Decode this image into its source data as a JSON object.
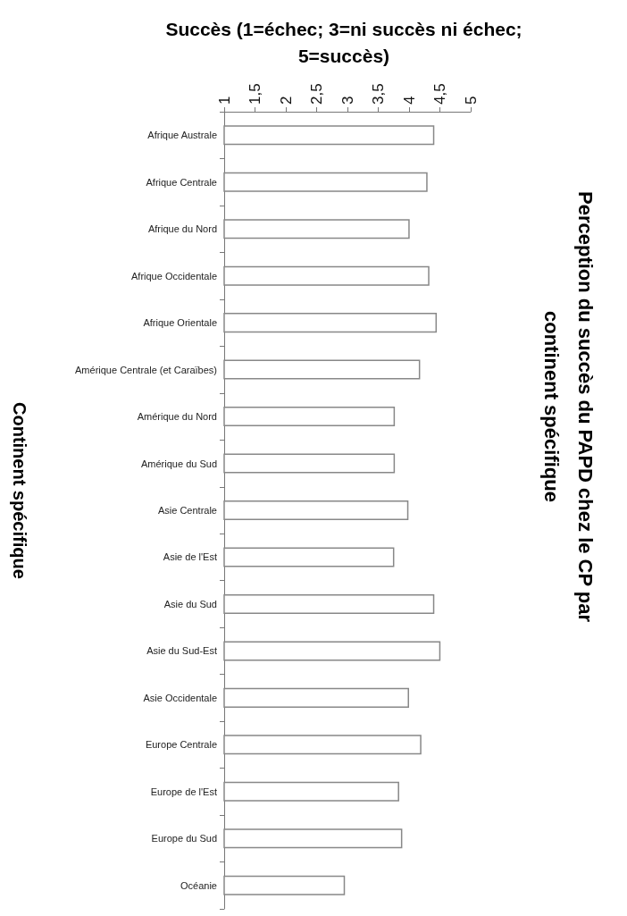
{
  "chart_data": {
    "type": "bar",
    "orientation": "horizontal",
    "title": "Perception du succès du PAPD chez le CP par continent spécifique",
    "xlabel": "Succès (1=échec; 3=ni succès ni échec; 5=succès)",
    "ylabel": "Continent spécifique",
    "categories": [
      "Afrique Australe",
      "Afrique Centrale",
      "Afrique du Nord",
      "Afrique Occidentale",
      "Afrique Orientale",
      "Amérique Centrale (et Caraïbes)",
      "Amérique du Nord",
      "Amérique du Sud",
      "Asie Centrale",
      "Asie de l'Est",
      "Asie du Sud",
      "Asie du Sud-Est",
      "Asie Occidentale",
      "Europe Centrale",
      "Europe de l'Est",
      "Europe du Sud",
      "Océanie"
    ],
    "values": [
      4.41,
      4.3,
      4.01,
      4.33,
      4.45,
      4.18,
      3.77,
      3.77,
      3.99,
      3.76,
      4.41,
      4.51,
      4.0,
      4.2,
      3.84,
      3.89,
      2.96
    ],
    "color": "#ffffff",
    "xlim": [
      1,
      5
    ],
    "xticks": [
      1,
      {
        "value": 1.5,
        "label": "1,5"
      },
      2,
      {
        "value": 2.5,
        "label": "2,5"
      },
      3,
      {
        "value": 3.5,
        "label": "3,5"
      },
      4,
      {
        "value": 4.5,
        "label": "4,5"
      },
      5
    ],
    "grid": false
  }
}
